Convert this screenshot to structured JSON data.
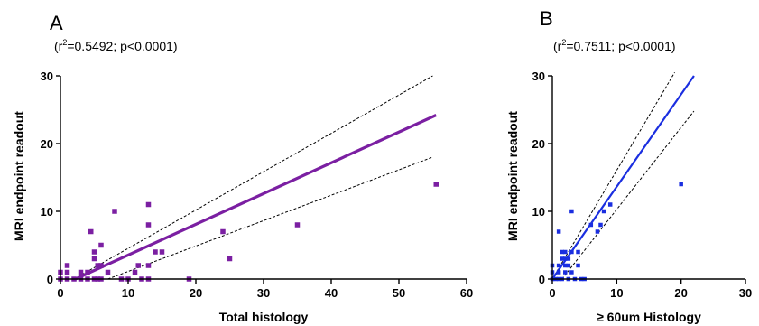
{
  "chart_data": [
    {
      "type": "scatter",
      "panel_label": "A",
      "stat_prefix": "(r",
      "stat_sup": "2",
      "stat_rest": "=0.5492; p<0.0001)",
      "xlabel": "Total histology",
      "ylabel": "MRI endpoint readout",
      "xlim": [
        0,
        60
      ],
      "ylim": [
        0,
        30
      ],
      "xticks": [
        0,
        10,
        20,
        30,
        40,
        50,
        60
      ],
      "yticks": [
        0,
        10,
        20,
        30
      ],
      "color": "#7b1fa2",
      "fit_line": {
        "x": [
          2.2,
          55.5
        ],
        "y": [
          0,
          24.2
        ]
      },
      "ci_upper": {
        "x": [
          2,
          55
        ],
        "y": [
          0,
          30
        ]
      },
      "ci_lower": {
        "x": [
          7,
          55
        ],
        "y": [
          0,
          18
        ]
      },
      "points": [
        [
          0,
          0
        ],
        [
          0,
          1
        ],
        [
          1,
          0
        ],
        [
          1,
          1
        ],
        [
          1,
          2
        ],
        [
          2,
          0
        ],
        [
          3,
          1
        ],
        [
          3,
          0
        ],
        [
          4,
          1
        ],
        [
          4,
          0
        ],
        [
          4.5,
          7
        ],
        [
          5,
          4
        ],
        [
          5,
          3
        ],
        [
          5,
          0
        ],
        [
          5.5,
          0
        ],
        [
          5.5,
          2
        ],
        [
          6,
          2
        ],
        [
          6,
          5
        ],
        [
          6,
          0
        ],
        [
          7,
          1
        ],
        [
          8,
          10
        ],
        [
          9,
          0
        ],
        [
          10,
          0
        ],
        [
          11,
          1
        ],
        [
          11.5,
          2
        ],
        [
          12,
          0
        ],
        [
          13,
          11
        ],
        [
          13,
          8
        ],
        [
          13,
          2
        ],
        [
          13,
          0
        ],
        [
          14,
          4
        ],
        [
          15,
          4
        ],
        [
          19,
          0
        ],
        [
          24,
          7
        ],
        [
          25,
          3
        ],
        [
          35,
          8
        ],
        [
          55.5,
          14
        ]
      ]
    },
    {
      "type": "scatter",
      "panel_label": "B",
      "stat_prefix": "(r",
      "stat_sup": "2",
      "stat_rest": "=0.7511; p<0.0001)",
      "xlabel": "≥ 60um Histology",
      "ylabel": "MRI endpoint readout",
      "xlim": [
        0,
        30
      ],
      "ylim": [
        0,
        30
      ],
      "xticks": [
        0,
        10,
        20,
        30
      ],
      "yticks": [
        0,
        10,
        20,
        30
      ],
      "color": "#1a2ee0",
      "fit_line": {
        "x": [
          0,
          22
        ],
        "y": [
          0,
          30
        ]
      },
      "ci_upper": {
        "x": [
          0,
          19
        ],
        "y": [
          0,
          30.5
        ]
      },
      "ci_lower": {
        "x": [
          1.5,
          22
        ],
        "y": [
          0,
          24.8
        ]
      },
      "points": [
        [
          0,
          0
        ],
        [
          0,
          1
        ],
        [
          0,
          2
        ],
        [
          0.5,
          0
        ],
        [
          1,
          0
        ],
        [
          1,
          1
        ],
        [
          1,
          2
        ],
        [
          1,
          7
        ],
        [
          1.5,
          0
        ],
        [
          1.5,
          3
        ],
        [
          1.5,
          4
        ],
        [
          2,
          1
        ],
        [
          2,
          2
        ],
        [
          2,
          3
        ],
        [
          2,
          4
        ],
        [
          2.5,
          0
        ],
        [
          2.5,
          2
        ],
        [
          2.5,
          3
        ],
        [
          3,
          10
        ],
        [
          3,
          4
        ],
        [
          3,
          1
        ],
        [
          3.5,
          0
        ],
        [
          4,
          4
        ],
        [
          4,
          2
        ],
        [
          4.5,
          0
        ],
        [
          5,
          0
        ],
        [
          6,
          8
        ],
        [
          7,
          7
        ],
        [
          7.5,
          8
        ],
        [
          8,
          10
        ],
        [
          9,
          11
        ],
        [
          20,
          14
        ]
      ]
    }
  ]
}
